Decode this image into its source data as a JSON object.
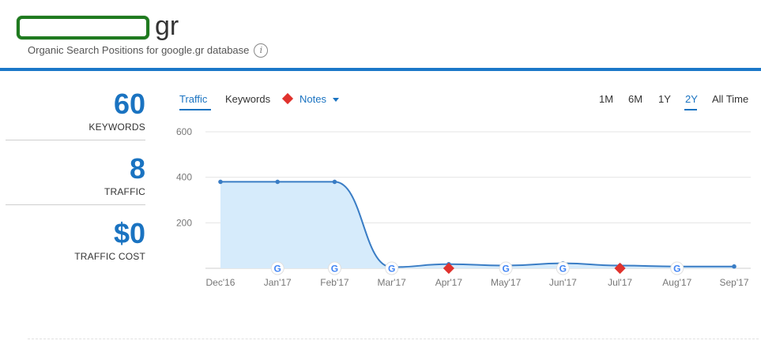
{
  "header": {
    "domain_suffix": "gr",
    "subtitle": "Organic Search Positions for google.gr database",
    "info_icon": "info-icon"
  },
  "kpis": [
    {
      "value": "60",
      "label": "KEYWORDS"
    },
    {
      "value": "8",
      "label": "TRAFFIC"
    },
    {
      "value": "$0",
      "label": "TRAFFIC COST"
    }
  ],
  "tabs": {
    "traffic": "Traffic",
    "keywords": "Keywords",
    "notes": "Notes"
  },
  "ranges": [
    "1M",
    "6M",
    "1Y",
    "2Y",
    "All Time"
  ],
  "active_range": "2Y",
  "colors": {
    "accent": "#1a73c1",
    "header_rule": "#1b78c8",
    "area_fill": "#d6ebfb",
    "note_marker": "#e0322d",
    "redaction_border": "#1f7a1f"
  },
  "chart_data": {
    "type": "area",
    "categories": [
      "Dec'16",
      "Jan'17",
      "Feb'17",
      "Mar'17",
      "Apr'17",
      "May'17",
      "Jun'17",
      "Jul'17",
      "Aug'17",
      "Sep'17"
    ],
    "values": [
      380,
      380,
      380,
      5,
      18,
      12,
      22,
      12,
      8,
      8
    ],
    "yticks": [
      200,
      400,
      600
    ],
    "ylim": [
      0,
      600
    ],
    "markers": [
      {
        "category": "Jan'17",
        "kind": "google-update"
      },
      {
        "category": "Feb'17",
        "kind": "google-update"
      },
      {
        "category": "Mar'17",
        "kind": "google-update"
      },
      {
        "category": "Apr'17",
        "kind": "note"
      },
      {
        "category": "May'17",
        "kind": "google-update"
      },
      {
        "category": "Jun'17",
        "kind": "google-update"
      },
      {
        "category": "Jul'17",
        "kind": "note"
      },
      {
        "category": "Aug'17",
        "kind": "google-update"
      }
    ],
    "grid": true
  }
}
